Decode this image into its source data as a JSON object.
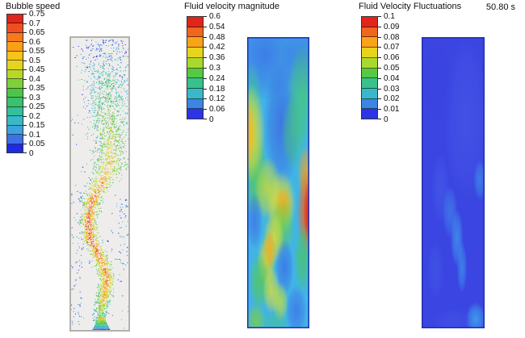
{
  "timestamp": "50.80 s",
  "colors": {
    "background": "#ffffff",
    "text": "#111111",
    "column_fill": "#eeedec",
    "column_wall": "#b3b1ac",
    "contour_border": "#1f2fb0"
  },
  "chart_data": [
    {
      "type": "scatter",
      "title": "Bubble speed",
      "legend_position": "top-left",
      "colorbar": {
        "min": 0,
        "max": 0.75,
        "ticks": [
          "0.75",
          "0.7",
          "0.65",
          "0.6",
          "0.55",
          "0.5",
          "0.45",
          "0.4",
          "0.35",
          "0.3",
          "0.25",
          "0.2",
          "0.15",
          "0.1",
          "0.05",
          "0"
        ],
        "colors": [
          "#e1251b",
          "#ef4f1e",
          "#f67a1c",
          "#fa9f17",
          "#f9c31a",
          "#e4d41e",
          "#b5d92b",
          "#7fd03a",
          "#4cc64a",
          "#3ac06e",
          "#35c09c",
          "#38b9c6",
          "#3da3e0",
          "#3e71e8",
          "#1e2ae4"
        ]
      },
      "plume": {
        "count": 3000,
        "path": [
          {
            "t": 0.0,
            "x": 0.58,
            "spread": 0.5,
            "speed": 0.15
          },
          {
            "t": 0.08,
            "x": 0.6,
            "spread": 0.46,
            "speed": 0.2
          },
          {
            "t": 0.16,
            "x": 0.62,
            "spread": 0.4,
            "speed": 0.28
          },
          {
            "t": 0.26,
            "x": 0.63,
            "spread": 0.36,
            "speed": 0.36
          },
          {
            "t": 0.36,
            "x": 0.67,
            "spread": 0.3,
            "speed": 0.45
          },
          {
            "t": 0.44,
            "x": 0.66,
            "spread": 0.28,
            "speed": 0.52
          },
          {
            "t": 0.5,
            "x": 0.55,
            "spread": 0.22,
            "speed": 0.58
          },
          {
            "t": 0.56,
            "x": 0.38,
            "spread": 0.16,
            "speed": 0.63
          },
          {
            "t": 0.63,
            "x": 0.31,
            "spread": 0.14,
            "speed": 0.67
          },
          {
            "t": 0.7,
            "x": 0.33,
            "spread": 0.14,
            "speed": 0.68
          },
          {
            "t": 0.77,
            "x": 0.5,
            "spread": 0.14,
            "speed": 0.64
          },
          {
            "t": 0.84,
            "x": 0.62,
            "spread": 0.13,
            "speed": 0.64
          },
          {
            "t": 0.9,
            "x": 0.58,
            "spread": 0.12,
            "speed": 0.58
          },
          {
            "t": 0.95,
            "x": 0.52,
            "spread": 0.11,
            "speed": 0.45
          },
          {
            "t": 1.0,
            "x": 0.5,
            "spread": 0.1,
            "speed": 0.25
          }
        ]
      },
      "stray_clusters": [
        {
          "x0": 0.02,
          "x1": 0.2,
          "t0": 0.52,
          "t1": 0.98,
          "n": 70
        },
        {
          "x0": 0.8,
          "x1": 0.98,
          "t0": 0.55,
          "t1": 0.78,
          "n": 45
        },
        {
          "x0": 0.15,
          "x1": 0.35,
          "t0": 0.58,
          "t1": 0.72,
          "n": 25
        },
        {
          "x0": 0.02,
          "x1": 0.98,
          "t0": 0.02,
          "t1": 1.0,
          "n": 130
        }
      ],
      "inlet": {
        "x_center": 0.52,
        "y0": 0.952,
        "y1": 0.995,
        "half_width_top": 0.04,
        "half_width_bottom": 0.15
      }
    },
    {
      "type": "heatmap",
      "title": "Fluid velocity magnitude",
      "legend_position": "top-center",
      "colorbar": {
        "min": 0,
        "max": 0.6,
        "ticks": [
          "0.6",
          "0.54",
          "0.48",
          "0.42",
          "0.36",
          "0.3",
          "0.24",
          "0.18",
          "0.12",
          "0.06",
          "0"
        ],
        "colors": [
          "#e1251b",
          "#f0661d",
          "#f9a318",
          "#e8d41d",
          "#a8d92c",
          "#55c943",
          "#37c18c",
          "#3ab8c9",
          "#3d85e2",
          "#2b34e6"
        ]
      },
      "base_color": "#41b4e6",
      "features": [
        {
          "x": 0.28,
          "y": 0.06,
          "rx": 0.55,
          "ry": 0.16,
          "c": "#3d74e8",
          "a": 0.85
        },
        {
          "x": 0.88,
          "y": 0.07,
          "rx": 0.33,
          "ry": 0.13,
          "c": "#3d74e8",
          "a": 0.75
        },
        {
          "x": 0.56,
          "y": 0.3,
          "rx": 0.3,
          "ry": 0.22,
          "c": "#3c66e4",
          "a": 0.8
        },
        {
          "x": 0.06,
          "y": 0.2,
          "rx": 0.18,
          "ry": 0.12,
          "c": "#42c498",
          "a": 0.7
        },
        {
          "x": 0.9,
          "y": 0.2,
          "rx": 0.26,
          "ry": 0.18,
          "c": "#46c878",
          "a": 0.8
        },
        {
          "x": 0.74,
          "y": 0.33,
          "rx": 0.2,
          "ry": 0.13,
          "c": "#46c878",
          "a": 0.65
        },
        {
          "x": 0.12,
          "y": 0.47,
          "rx": 0.22,
          "ry": 0.15,
          "c": "#52c954",
          "a": 0.8
        },
        {
          "x": 0.05,
          "y": 0.33,
          "rx": 0.24,
          "ry": 0.17,
          "c": "#e2df30",
          "a": 0.95
        },
        {
          "x": 0.01,
          "y": 0.33,
          "rx": 0.13,
          "ry": 0.12,
          "c": "#f6b31c",
          "a": 0.85
        },
        {
          "x": 0.33,
          "y": 0.52,
          "rx": 0.22,
          "ry": 0.11,
          "c": "#cfdd2c",
          "a": 0.8
        },
        {
          "x": 0.55,
          "y": 0.57,
          "rx": 0.24,
          "ry": 0.11,
          "c": "#e2df30",
          "a": 0.9
        },
        {
          "x": 0.58,
          "y": 0.575,
          "rx": 0.13,
          "ry": 0.065,
          "c": "#f6a41e",
          "a": 0.85
        },
        {
          "x": 0.95,
          "y": 0.47,
          "rx": 0.14,
          "ry": 0.1,
          "c": "#f9a318",
          "a": 0.8
        },
        {
          "x": 0.97,
          "y": 0.6,
          "rx": 0.17,
          "ry": 0.15,
          "c": "#f2641c",
          "a": 0.95
        },
        {
          "x": 1.0,
          "y": 0.6,
          "rx": 0.1,
          "ry": 0.11,
          "c": "#e62817",
          "a": 0.95
        },
        {
          "x": 0.9,
          "y": 0.76,
          "rx": 0.15,
          "ry": 0.12,
          "c": "#4ac464",
          "a": 0.8
        },
        {
          "x": 0.57,
          "y": 0.65,
          "rx": 0.2,
          "ry": 0.1,
          "c": "#63ce48",
          "a": 0.7
        },
        {
          "x": 0.43,
          "y": 0.69,
          "rx": 0.17,
          "ry": 0.09,
          "c": "#e2df30",
          "a": 0.85
        },
        {
          "x": 0.31,
          "y": 0.77,
          "rx": 0.15,
          "ry": 0.09,
          "c": "#e0dd2c",
          "a": 0.85
        },
        {
          "x": 0.36,
          "y": 0.73,
          "rx": 0.1,
          "ry": 0.07,
          "c": "#f6a41e",
          "a": 0.75
        },
        {
          "x": 0.2,
          "y": 0.84,
          "rx": 0.17,
          "ry": 0.1,
          "c": "#55ca50",
          "a": 0.8
        },
        {
          "x": 0.12,
          "y": 0.63,
          "rx": 0.13,
          "ry": 0.1,
          "c": "#3c6ae6",
          "a": 0.7
        },
        {
          "x": 0.6,
          "y": 0.79,
          "rx": 0.15,
          "ry": 0.1,
          "c": "#3c6ae6",
          "a": 0.75
        },
        {
          "x": 0.79,
          "y": 0.94,
          "rx": 0.17,
          "ry": 0.09,
          "c": "#3e74e8",
          "a": 0.8
        },
        {
          "x": 0.39,
          "y": 0.87,
          "rx": 0.14,
          "ry": 0.08,
          "c": "#e2df30",
          "a": 0.8
        },
        {
          "x": 0.53,
          "y": 0.91,
          "rx": 0.13,
          "ry": 0.07,
          "c": "#cfe02c",
          "a": 0.75
        },
        {
          "x": 0.14,
          "y": 0.975,
          "rx": 0.16,
          "ry": 0.06,
          "c": "#7fd03a",
          "a": 0.75
        },
        {
          "x": 0.45,
          "y": 0.985,
          "rx": 0.22,
          "ry": 0.05,
          "c": "#44c18e",
          "a": 0.6
        }
      ]
    },
    {
      "type": "heatmap",
      "title": "Fluid Velocity Fluctuations",
      "legend_position": "top-right",
      "colorbar": {
        "min": 0,
        "max": 0.1,
        "ticks": [
          "0.1",
          "0.09",
          "0.08",
          "0.07",
          "0.06",
          "0.05",
          "0.04",
          "0.03",
          "0.02",
          "0.01",
          "0"
        ],
        "colors": [
          "#e1251b",
          "#f0661d",
          "#f9a318",
          "#e8d41d",
          "#a8d92c",
          "#55c943",
          "#37c18c",
          "#3ab8c9",
          "#3d85e2",
          "#2b34e6"
        ]
      },
      "base_color": "#3b46e2",
      "features": [
        {
          "x": 0.7,
          "y": 0.28,
          "rx": 0.35,
          "ry": 0.28,
          "c": "#4a5ae8",
          "a": 0.55
        },
        {
          "x": 0.25,
          "y": 0.15,
          "rx": 0.3,
          "ry": 0.2,
          "c": "#3a41dc",
          "a": 0.5
        },
        {
          "x": 0.3,
          "y": 0.52,
          "rx": 0.14,
          "ry": 0.12,
          "c": "#4560e8",
          "a": 0.55
        },
        {
          "x": 0.45,
          "y": 0.6,
          "rx": 0.12,
          "ry": 0.09,
          "c": "#41a0ec",
          "a": 0.5
        },
        {
          "x": 0.56,
          "y": 0.69,
          "rx": 0.1,
          "ry": 0.1,
          "c": "#3fb2ef",
          "a": 0.6
        },
        {
          "x": 0.64,
          "y": 0.79,
          "rx": 0.08,
          "ry": 0.09,
          "c": "#3fb2ef",
          "a": 0.55
        },
        {
          "x": 0.93,
          "y": 0.49,
          "rx": 0.11,
          "ry": 0.07,
          "c": "#3fb2ef",
          "a": 0.5
        },
        {
          "x": 0.22,
          "y": 0.8,
          "rx": 0.13,
          "ry": 0.1,
          "c": "#4560e8",
          "a": 0.45
        },
        {
          "x": 0.86,
          "y": 0.97,
          "rx": 0.16,
          "ry": 0.06,
          "c": "#3fc3f2",
          "a": 0.65
        },
        {
          "x": 0.5,
          "y": 0.98,
          "rx": 0.3,
          "ry": 0.05,
          "c": "#4556e6",
          "a": 0.5
        }
      ]
    }
  ]
}
